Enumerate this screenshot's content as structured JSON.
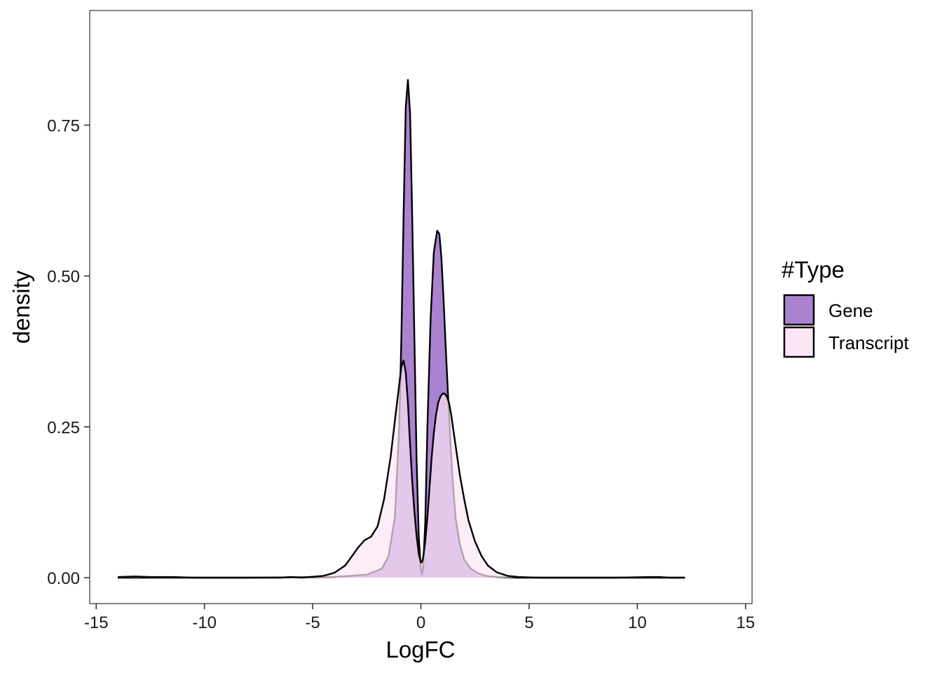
{
  "chart_data": {
    "type": "area",
    "chart_kind": "density",
    "xlabel": "LogFC",
    "ylabel": "density",
    "xlim": [
      -15.3,
      15.3
    ],
    "ylim": [
      -0.043,
      0.94
    ],
    "x_ticks": [
      -15,
      -10,
      -5,
      0,
      5,
      10,
      15
    ],
    "x_tick_labels": [
      "-15",
      "-10",
      "-5",
      "0",
      "5",
      "10",
      "15"
    ],
    "y_ticks": [
      0,
      0.25,
      0.5,
      0.75
    ],
    "y_tick_labels": [
      "0.00",
      "0.25",
      "0.50",
      "0.75"
    ],
    "grid": false,
    "legend": {
      "title": "#Type",
      "position": "right",
      "entries": [
        {
          "label": "Gene",
          "fill": "#AB82D0"
        },
        {
          "label": "Transcript",
          "fill": "#FCE6F6"
        }
      ]
    },
    "series": [
      {
        "name": "Gene",
        "fill": "#AB82D0",
        "fill_opacity": 1,
        "stroke": "#000000",
        "x": [
          -14,
          -8,
          -4,
          -2.5,
          -1.8,
          -1.5,
          -1.2,
          -1.0,
          -0.9,
          -0.8,
          -0.7,
          -0.6,
          -0.5,
          -0.4,
          -0.3,
          -0.2,
          -0.1,
          0.0,
          0.05,
          0.1,
          0.2,
          0.3,
          0.45,
          0.6,
          0.75,
          0.85,
          0.95,
          1.05,
          1.15,
          1.3,
          1.45,
          1.6,
          1.8,
          2.0,
          2.3,
          2.6,
          3.0,
          3.5,
          4.5,
          8,
          12.2
        ],
        "y": [
          0,
          0,
          0.001,
          0.005,
          0.015,
          0.035,
          0.1,
          0.25,
          0.4,
          0.6,
          0.78,
          0.825,
          0.77,
          0.6,
          0.4,
          0.2,
          0.07,
          0.012,
          0.005,
          0.015,
          0.09,
          0.25,
          0.43,
          0.54,
          0.575,
          0.57,
          0.53,
          0.46,
          0.38,
          0.27,
          0.17,
          0.1,
          0.055,
          0.03,
          0.015,
          0.008,
          0.003,
          0.001,
          0,
          0,
          0
        ]
      },
      {
        "name": "Transcript",
        "fill": "#FCE6F6",
        "fill_opacity": 0.7,
        "stroke": "#000000",
        "x": [
          -14,
          -13.2,
          -12.5,
          -11.5,
          -10.5,
          -9,
          -7.5,
          -6.5,
          -6,
          -5.5,
          -4.5,
          -4,
          -3.5,
          -3.2,
          -2.9,
          -2.6,
          -2.3,
          -2.0,
          -1.7,
          -1.4,
          -1.2,
          -1.0,
          -0.9,
          -0.8,
          -0.7,
          -0.6,
          -0.5,
          -0.4,
          -0.3,
          -0.2,
          -0.1,
          0.0,
          0.05,
          0.1,
          0.2,
          0.3,
          0.4,
          0.5,
          0.6,
          0.7,
          0.8,
          0.9,
          1.0,
          1.1,
          1.2,
          1.3,
          1.4,
          1.6,
          1.8,
          2.0,
          2.2,
          2.5,
          2.8,
          3.1,
          3.5,
          4.0,
          4.5,
          5.5,
          7,
          9,
          10.5,
          11,
          11.5,
          12.2
        ],
        "y": [
          0.001,
          0.002,
          0.001,
          0.001,
          0,
          0,
          0,
          0,
          0.001,
          0,
          0.003,
          0.008,
          0.02,
          0.035,
          0.05,
          0.062,
          0.068,
          0.085,
          0.13,
          0.2,
          0.26,
          0.32,
          0.35,
          0.36,
          0.34,
          0.29,
          0.22,
          0.16,
          0.11,
          0.07,
          0.04,
          0.025,
          0.026,
          0.032,
          0.06,
          0.1,
          0.15,
          0.2,
          0.24,
          0.27,
          0.29,
          0.3,
          0.305,
          0.305,
          0.3,
          0.29,
          0.27,
          0.22,
          0.17,
          0.13,
          0.095,
          0.06,
          0.036,
          0.02,
          0.009,
          0.003,
          0.001,
          0,
          0,
          0,
          0.001,
          0.001,
          0,
          0
        ]
      }
    ]
  }
}
